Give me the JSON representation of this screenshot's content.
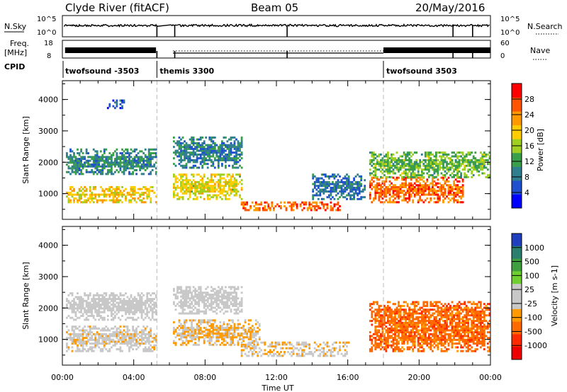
{
  "header": {
    "left": "Clyde River (fitACF)",
    "center": "Beam 05",
    "right": "20/May/2016"
  },
  "colors": {
    "power_scale": [
      "#0000ff",
      "#2050d0",
      "#2f7f8f",
      "#3a9f4a",
      "#9fcf20",
      "#ffcc00",
      "#ff9900",
      "#ff5500",
      "#ff0000"
    ],
    "velocity_scale": [
      "#1f3fbf",
      "#2a7f6f",
      "#3f9f3f",
      "#6fcf2f",
      "#c8c8c8",
      "#c8c8c8",
      "#ff9a00",
      "#ff6a00",
      "#ff2a00",
      "#ee0000"
    ],
    "ground_scatter": "#c8c8c8"
  },
  "top_panels": {
    "nsky_label": "N.Sky",
    "nsky_ticks": [
      "10^5",
      "10^0"
    ],
    "nsearch_label": "N.Search",
    "nsearch_ticks": [
      "10^5",
      "10^0"
    ],
    "freq_label": "Freq.",
    "freq_unit": "[MHz]",
    "freq_ticks": [
      "18",
      "8"
    ],
    "nave_label": "Nave",
    "nave_ticks": [
      "60",
      "0"
    ],
    "cpid_label": "CPID",
    "cpid_segments": [
      {
        "label": "twofsound  -3503",
        "start_hr": 0.0,
        "end_hr": 5.3
      },
      {
        "label": "themis 3300",
        "start_hr": 5.3,
        "end_hr": 18.0
      },
      {
        "label": "twofsound 3503",
        "start_hr": 18.0,
        "end_hr": 24.0
      }
    ]
  },
  "panels": {
    "y_label": "Slant Range [km]",
    "y_ticks": [
      "4000",
      "3000",
      "2000",
      "1000"
    ],
    "x_ticks": [
      "00:00",
      "04:00",
      "08:00",
      "12:00",
      "16:00",
      "20:00",
      "00:00"
    ],
    "x_title": "Time UT"
  },
  "power_colorbar": {
    "title": "Power [dB]",
    "labels": [
      "28",
      "24",
      "20",
      "16",
      "12",
      "8",
      "4"
    ]
  },
  "velocity_colorbar": {
    "title": "Velocity [m s-1]",
    "labels": [
      "1000",
      "500",
      "100",
      "25",
      "-25",
      "-100",
      "-500",
      "-1000"
    ]
  },
  "chart_data": [
    {
      "type": "heatmap",
      "title": "Power",
      "xlabel": "Time UT",
      "ylabel": "Slant Range [km]",
      "xlim": [
        0,
        24
      ],
      "ylim": [
        180,
        4600
      ],
      "colorbar": {
        "label": "Power [dB]",
        "range": [
          0,
          32
        ]
      },
      "data_gap_hr": [
        5.3,
        6.0
      ],
      "echo_regions": [
        {
          "t_start": 0.2,
          "t_end": 5.2,
          "range_km": [
            1600,
            2400
          ],
          "power_db": 10
        },
        {
          "t_start": 0.2,
          "t_end": 5.2,
          "range_km": [
            700,
            1200
          ],
          "power_db": 20
        },
        {
          "t_start": 2.5,
          "t_end": 3.5,
          "range_km": [
            3700,
            4000
          ],
          "power_db": 6
        },
        {
          "t_start": 6.2,
          "t_end": 10.0,
          "range_km": [
            800,
            1600
          ],
          "power_db": 18
        },
        {
          "t_start": 6.2,
          "t_end": 10.0,
          "range_km": [
            1800,
            2800
          ],
          "power_db": 9
        },
        {
          "t_start": 10.0,
          "t_end": 15.5,
          "range_km": [
            450,
            750
          ],
          "power_db": 26
        },
        {
          "t_start": 14.0,
          "t_end": 17.0,
          "range_km": [
            800,
            1600
          ],
          "power_db": 8
        },
        {
          "t_start": 17.2,
          "t_end": 22.5,
          "range_km": [
            700,
            1500
          ],
          "power_db": 26
        },
        {
          "t_start": 17.2,
          "t_end": 24.0,
          "range_km": [
            1500,
            2300
          ],
          "power_db": 14
        }
      ]
    },
    {
      "type": "heatmap",
      "title": "Velocity",
      "xlabel": "Time UT",
      "ylabel": "Slant Range [km]",
      "xlim": [
        0,
        24
      ],
      "ylim": [
        180,
        4600
      ],
      "colorbar": {
        "label": "Velocity [m s-1]",
        "range": [
          -1000,
          1000
        ]
      },
      "data_gap_hr": [
        5.3,
        6.0
      ],
      "echo_regions": [
        {
          "t_start": 0.2,
          "t_end": 5.2,
          "range_km": [
            1600,
            2500
          ],
          "velocity": "ground scatter"
        },
        {
          "t_start": 0.2,
          "t_end": 5.2,
          "range_km": [
            600,
            1400
          ],
          "velocity": -100
        },
        {
          "t_start": 6.2,
          "t_end": 11.0,
          "range_km": [
            800,
            1600
          ],
          "velocity": -200
        },
        {
          "t_start": 6.2,
          "t_end": 10.0,
          "range_km": [
            1800,
            2700
          ],
          "velocity": "ground scatter"
        },
        {
          "t_start": 10.0,
          "t_end": 16.0,
          "range_km": [
            450,
            900
          ],
          "velocity": -150
        },
        {
          "t_start": 17.2,
          "t_end": 24.0,
          "range_km": [
            600,
            2200
          ],
          "velocity": -500
        }
      ]
    }
  ]
}
